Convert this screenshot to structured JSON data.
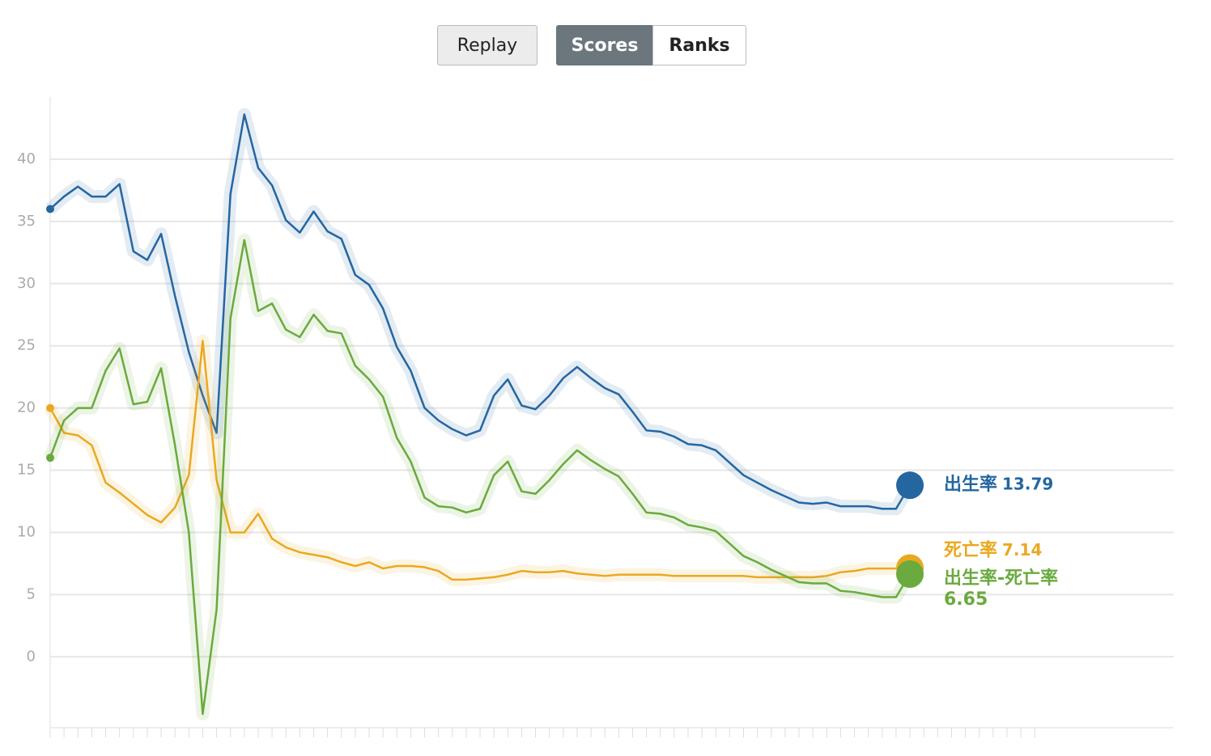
{
  "buttons": {
    "replay": "Replay",
    "scores": "Scores",
    "ranks": "Ranks"
  },
  "chart_data": {
    "type": "line",
    "ylim": [
      -5.7,
      45
    ],
    "yticks": [
      0,
      5,
      10,
      15,
      20,
      25,
      30,
      35,
      40
    ],
    "grid": true,
    "series": [
      {
        "name": "出生率",
        "color": "#2466a0",
        "values": [
          36.0,
          37,
          37.8,
          37,
          37,
          38,
          32.6,
          31.9,
          34,
          29,
          24.5,
          21,
          18,
          37.2,
          43.6,
          39.3,
          37.9,
          35.1,
          34.1,
          35.8,
          34.2,
          33.6,
          30.7,
          29.9,
          28.0,
          24.9,
          23.0,
          20.0,
          19.0,
          18.3,
          17.8,
          18.2,
          21.0,
          22.3,
          20.2,
          19.9,
          21.0,
          22.4,
          23.3,
          22.4,
          21.6,
          21.1,
          19.7,
          18.2,
          18.1,
          17.7,
          17.1,
          17.0,
          16.6,
          15.6,
          14.6,
          14.0,
          13.4,
          12.9,
          12.4,
          12.3,
          12.4,
          12.1,
          12.1,
          12.1,
          11.9,
          11.9,
          13.79
        ]
      },
      {
        "name": "死亡率",
        "color": "#eaa820",
        "values": [
          20.0,
          18.0,
          17.8,
          17.0,
          14.0,
          13.2,
          12.3,
          11.4,
          10.8,
          12.0,
          14.6,
          25.4,
          14.2,
          10.0,
          10.0,
          11.5,
          9.5,
          8.8,
          8.4,
          8.2,
          8.0,
          7.6,
          7.3,
          7.6,
          7.1,
          7.3,
          7.3,
          7.2,
          6.9,
          6.2,
          6.2,
          6.3,
          6.4,
          6.6,
          6.9,
          6.8,
          6.8,
          6.9,
          6.7,
          6.6,
          6.5,
          6.6,
          6.6,
          6.6,
          6.6,
          6.5,
          6.5,
          6.5,
          6.5,
          6.5,
          6.5,
          6.4,
          6.4,
          6.4,
          6.4,
          6.4,
          6.5,
          6.8,
          6.9,
          7.1,
          7.1,
          7.1,
          7.14
        ]
      },
      {
        "name": "出生率-死亡率",
        "color": "#6aaa3e",
        "values": [
          16,
          19,
          20,
          20,
          23,
          24.8,
          20.3,
          20.5,
          23.2,
          17,
          10,
          -4.6,
          3.8,
          27.2,
          33.5,
          27.8,
          28.4,
          26.3,
          25.7,
          27.5,
          26.2,
          26.0,
          23.4,
          22.3,
          20.9,
          17.6,
          15.7,
          12.8,
          12.1,
          12.0,
          11.6,
          11.9,
          14.6,
          15.7,
          13.3,
          13.1,
          14.2,
          15.5,
          16.6,
          15.8,
          15.1,
          14.5,
          13.1,
          11.6,
          11.5,
          11.2,
          10.6,
          10.4,
          10.1,
          9.1,
          8.1,
          7.6,
          7.0,
          6.5,
          6.0,
          5.9,
          5.9,
          5.3,
          5.2,
          5.0,
          4.8,
          4.8,
          6.65
        ]
      }
    ]
  }
}
